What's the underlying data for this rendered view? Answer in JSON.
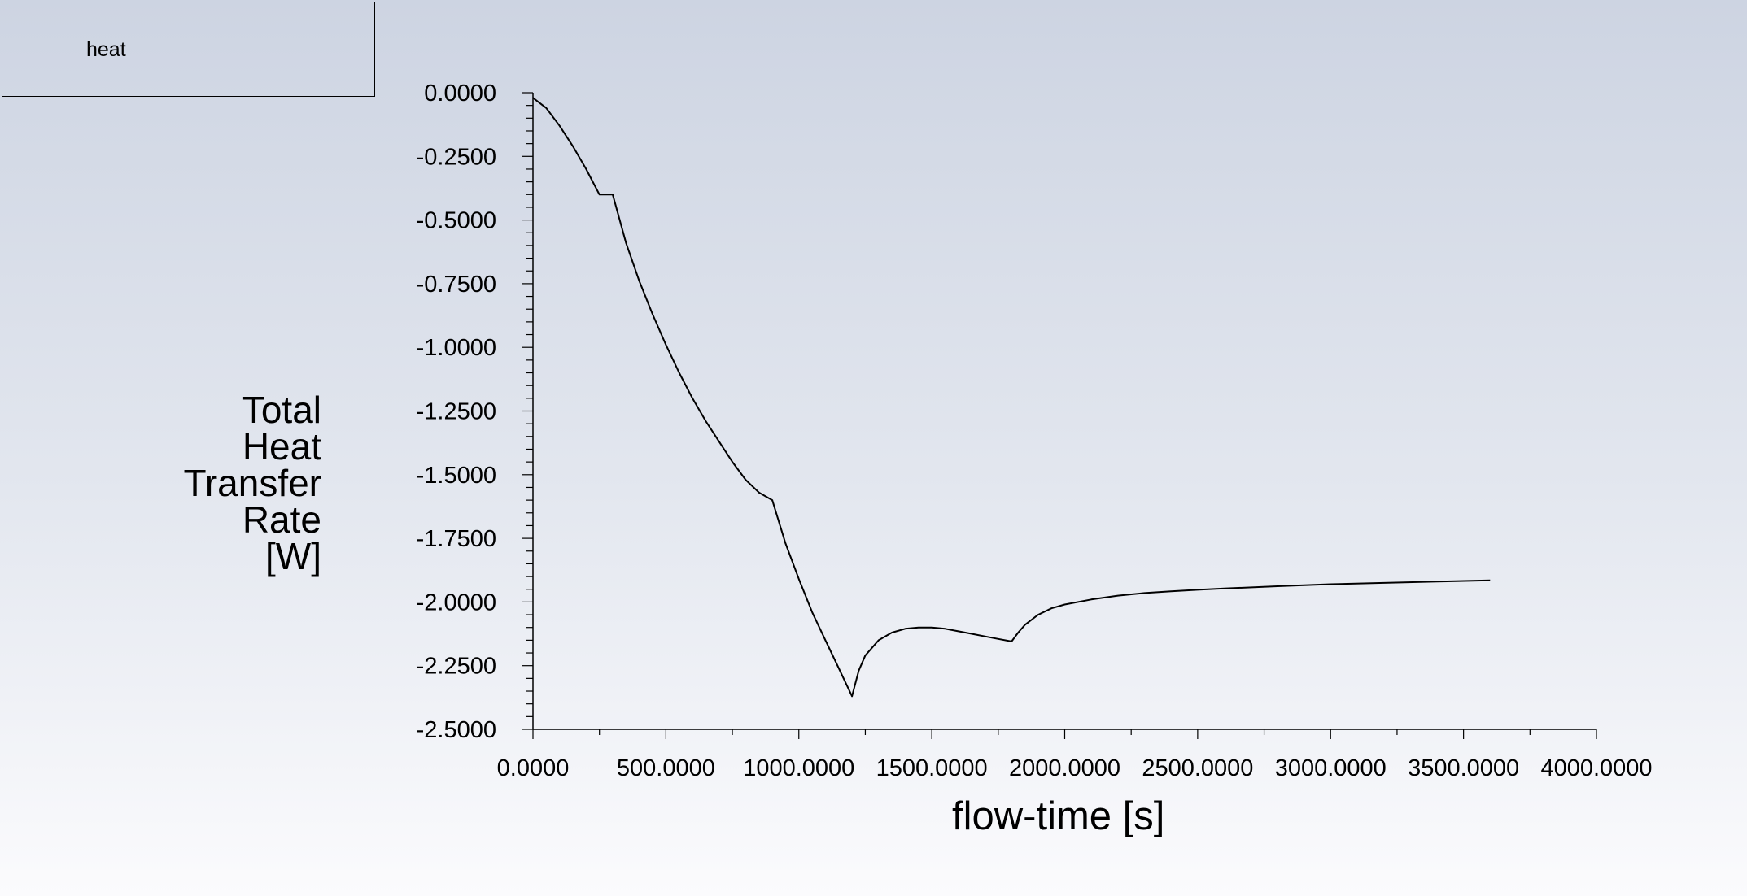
{
  "chart_data": {
    "type": "line",
    "xlabel": "flow-time [s]",
    "ylabel_lines": [
      "Total",
      "Heat",
      "Transfer",
      "Rate",
      "[W]"
    ],
    "xlim": [
      0,
      4000
    ],
    "ylim": [
      -2.5,
      0
    ],
    "x_ticks": [
      0,
      500,
      1000,
      1500,
      2000,
      2500,
      3000,
      3500,
      4000
    ],
    "x_tick_labels": [
      "0.0000",
      "500.0000",
      "1000.0000",
      "1500.0000",
      "2000.0000",
      "2500.0000",
      "3000.0000",
      "3500.0000",
      "4000.0000"
    ],
    "y_ticks": [
      0,
      -0.25,
      -0.5,
      -0.75,
      -1.0,
      -1.25,
      -1.5,
      -1.75,
      -2.0,
      -2.25,
      -2.5
    ],
    "y_tick_labels": [
      "0.0000",
      "-0.2500",
      "-0.5000",
      "-0.7500",
      "-1.0000",
      "-1.2500",
      "-1.5000",
      "-1.7500",
      "-2.0000",
      "-2.2500",
      "-2.5000"
    ],
    "grid": false,
    "legend_position": "top-left",
    "series": [
      {
        "name": "heat",
        "color": "#000000",
        "x": [
          0,
          50,
          100,
          150,
          200,
          250,
          300,
          350,
          400,
          450,
          500,
          550,
          600,
          650,
          700,
          750,
          800,
          850,
          900,
          950,
          1000,
          1050,
          1100,
          1150,
          1200,
          1225,
          1250,
          1300,
          1350,
          1400,
          1450,
          1500,
          1550,
          1600,
          1650,
          1700,
          1750,
          1800,
          1825,
          1850,
          1900,
          1950,
          2000,
          2100,
          2200,
          2300,
          2400,
          2500,
          2600,
          2800,
          3000,
          3200,
          3400,
          3600
        ],
        "y": [
          -0.02,
          -0.06,
          -0.13,
          -0.21,
          -0.3,
          -0.4,
          -0.4,
          -0.59,
          -0.74,
          -0.87,
          -0.99,
          -1.1,
          -1.2,
          -1.29,
          -1.37,
          -1.45,
          -1.52,
          -1.57,
          -1.6,
          -1.77,
          -1.91,
          -2.04,
          -2.15,
          -2.26,
          -2.37,
          -2.27,
          -2.21,
          -2.15,
          -2.12,
          -2.105,
          -2.1,
          -2.1,
          -2.105,
          -2.115,
          -2.125,
          -2.135,
          -2.145,
          -2.155,
          -2.12,
          -2.09,
          -2.05,
          -2.025,
          -2.01,
          -1.99,
          -1.975,
          -1.965,
          -1.958,
          -1.952,
          -1.947,
          -1.938,
          -1.93,
          -1.925,
          -1.92,
          -1.915
        ]
      }
    ]
  }
}
